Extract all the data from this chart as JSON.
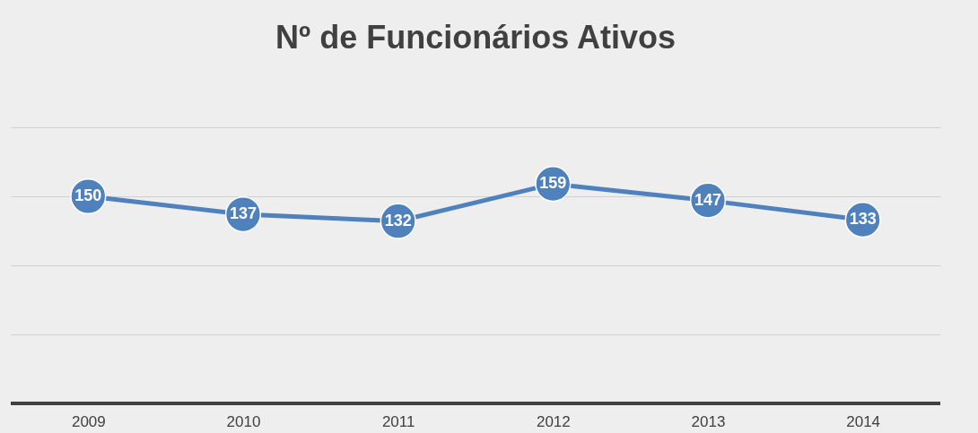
{
  "chart_data": {
    "type": "line",
    "title": "Nº de Funcionários Ativos",
    "categories": [
      "2009",
      "2010",
      "2011",
      "2012",
      "2013",
      "2014"
    ],
    "series": [
      {
        "color": "#4f81bd",
        "values": [
          150,
          137,
          132,
          159,
          147,
          133
        ]
      }
    ],
    "ylim": [
      0,
      200
    ],
    "yticks": [
      {
        "value": 0,
        "label": null
      },
      {
        "value": 50,
        "label": null
      },
      {
        "value": 100,
        "label": null
      },
      {
        "value": 150,
        "label": null
      },
      {
        "value": 200,
        "label": null
      }
    ],
    "grid": "y",
    "tick_labels": "x",
    "marker": "circle",
    "line_style": "solid",
    "data_labels": true
  }
}
